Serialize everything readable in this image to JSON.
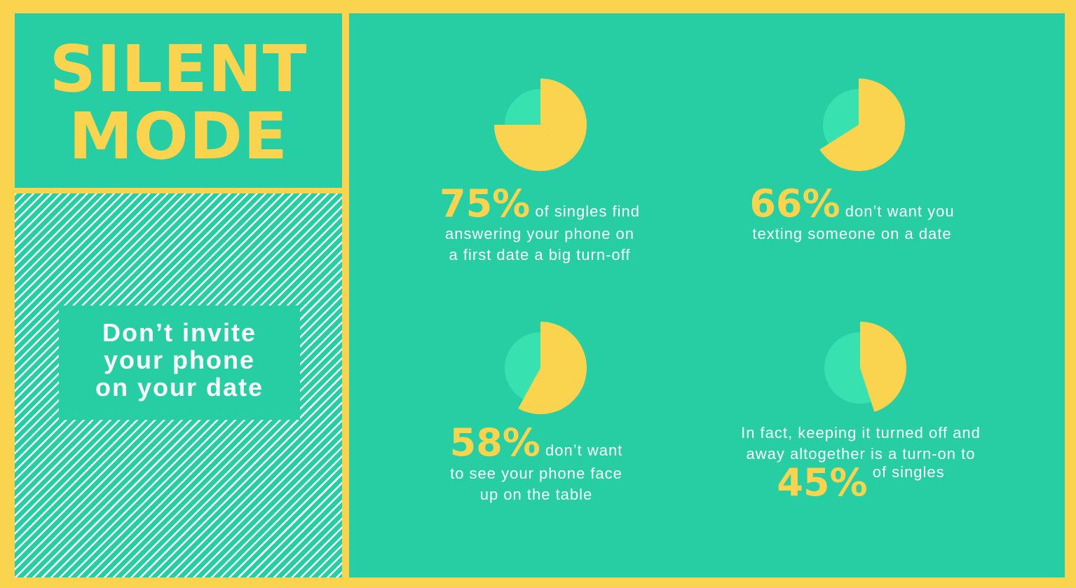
{
  "title": {
    "line1": "SILENT",
    "line2": "MODE"
  },
  "tagline": {
    "line1": "Don’t invite",
    "line2": "your phone",
    "line3": "on your date"
  },
  "colors": {
    "background": "#27cda3",
    "accent": "#fbd44f",
    "pie_light": "#38e1b0",
    "text": "#ffffff"
  },
  "chart_data": [
    {
      "type": "pie",
      "value_percent": 75,
      "label": "75%",
      "text_lines": [
        "of singles find",
        "answering your phone on",
        "a first date a big turn-off"
      ]
    },
    {
      "type": "pie",
      "value_percent": 66,
      "label": "66%",
      "text_lines": [
        "don’t want you",
        "texting someone on a date"
      ]
    },
    {
      "type": "pie",
      "value_percent": 58,
      "label": "58%",
      "text_lines": [
        "don’t want",
        "to see your phone face",
        "up on the table"
      ]
    },
    {
      "type": "pie",
      "value_percent": 45,
      "label": "45%",
      "text_lines": [
        "In fact, keeping it turned off and",
        "away altogether is a turn-on to",
        "of singles"
      ]
    }
  ]
}
